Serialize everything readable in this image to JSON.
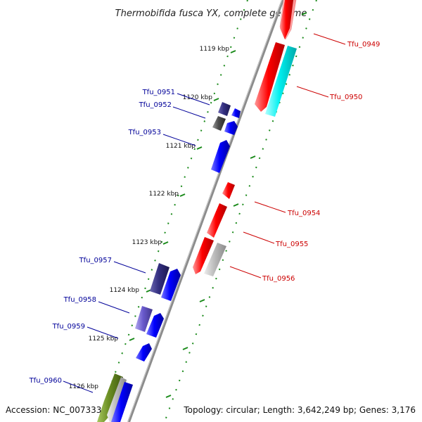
{
  "title": "Thermobifida fusca YX, complete genome",
  "accession": "Accession: NC_007333",
  "summary": "Topology: circular; Length: 3,642,249 bp; Genes: 3,176",
  "colors": {
    "forward_label": "#cc0000",
    "reverse_label": "#000099",
    "backbone": "#808080",
    "tick": "#1a8a1a",
    "red": "#ff0000",
    "cyan": "#00ffff",
    "blue": "#0000ff",
    "navy": "#332f80",
    "gray": "#bcbcbc",
    "dark_gray": "#4e4e4e",
    "violet": "#6a5acd",
    "olive": "#6b8e23"
  },
  "kbp_markers": [
    "1119 kbp",
    "1120 kbp",
    "1121 kbp",
    "1122 kbp",
    "1123 kbp",
    "1124 kbp",
    "1125 kbp",
    "1126 kbp"
  ],
  "gene_labels": [
    {
      "text": "Tfu_0949",
      "strand": "forward"
    },
    {
      "text": "Tfu_0950",
      "strand": "forward"
    },
    {
      "text": "Tfu_0951",
      "strand": "reverse"
    },
    {
      "text": "Tfu_0952",
      "strand": "reverse"
    },
    {
      "text": "Tfu_0953",
      "strand": "reverse"
    },
    {
      "text": "Tfu_0954",
      "strand": "forward"
    },
    {
      "text": "Tfu_0955",
      "strand": "forward"
    },
    {
      "text": "Tfu_0956",
      "strand": "forward"
    },
    {
      "text": "Tfu_0957",
      "strand": "reverse"
    },
    {
      "text": "Tfu_0958",
      "strand": "reverse"
    },
    {
      "text": "Tfu_0959",
      "strand": "reverse"
    },
    {
      "text": "Tfu_0960",
      "strand": "reverse"
    }
  ]
}
